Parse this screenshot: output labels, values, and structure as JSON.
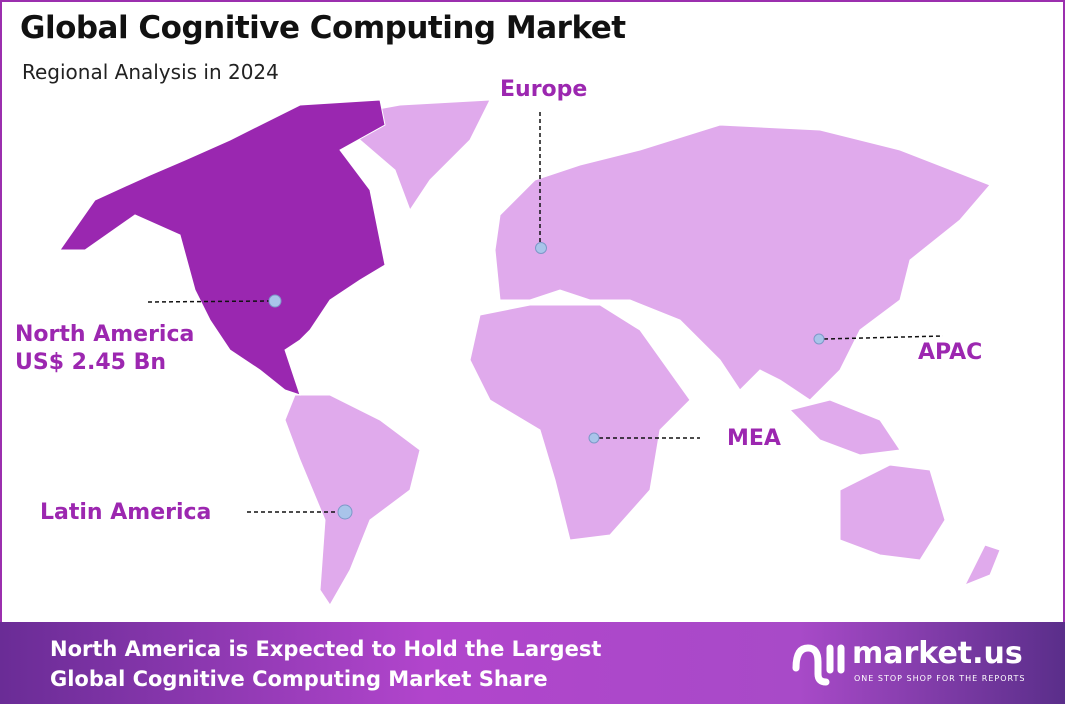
{
  "title": "Global Cognitive Computing Market",
  "subtitle": "Regional Analysis in 2024",
  "colors": {
    "highlight": "#9a27b0",
    "other_regions": "#e0aaec",
    "label": "#9c27b0",
    "border": "#9b2fae",
    "marker": "#a9c4ea"
  },
  "regions": {
    "north_america": {
      "name": "North America",
      "value": "US$ 2.45 Bn",
      "highlighted": true
    },
    "europe": {
      "name": "Europe"
    },
    "apac": {
      "name": "APAC"
    },
    "mea": {
      "name": "MEA"
    },
    "latin_america": {
      "name": "Latin America"
    }
  },
  "banner": {
    "line1": "North America is Expected to Hold the Largest",
    "line2": "Global Cognitive Computing Market Share"
  },
  "logo": {
    "name": "market.us",
    "tagline": "ONE STOP SHOP FOR THE REPORTS"
  }
}
